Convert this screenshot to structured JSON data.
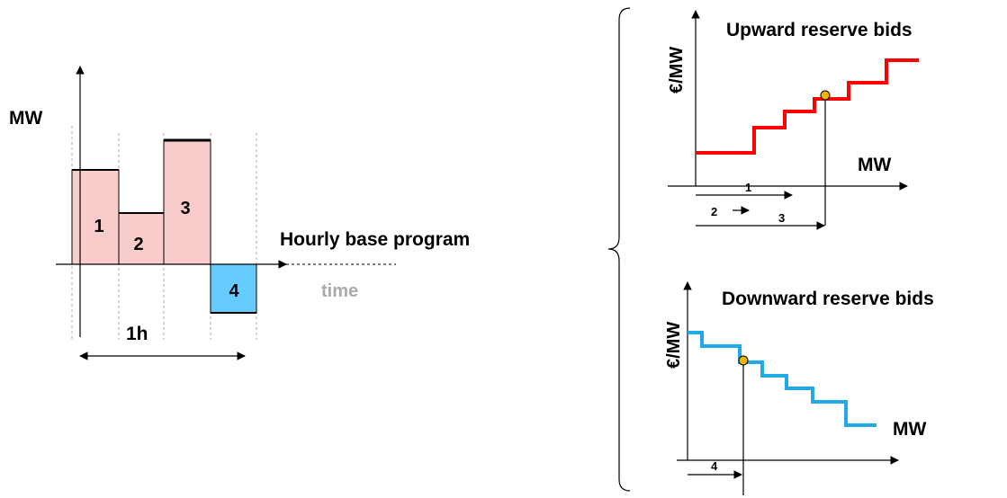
{
  "left_panel": {
    "y_axis_label": "MW",
    "x_axis_label": "time",
    "program_label": "Hourly base program",
    "duration_label": "1h",
    "blocks": [
      {
        "label": "1",
        "level": 1.0
      },
      {
        "label": "2",
        "level": 0.54
      },
      {
        "label": "3",
        "level": 1.34
      },
      {
        "label": "4",
        "level": -0.5
      }
    ]
  },
  "upward_panel": {
    "title": "Upward reserve bids",
    "y_axis_label": "€/MW",
    "x_axis_label": "MW",
    "arrow_labels": [
      "1",
      "2",
      "3"
    ]
  },
  "downward_panel": {
    "title": "Downward reserve bids",
    "y_axis_label": "€/MW",
    "x_axis_label": "MW",
    "arrow_labels": [
      "4"
    ]
  },
  "colors": {
    "positive_block": "#f9cccc",
    "negative_block": "#66ccff",
    "upward_curve": "#ff0000",
    "downward_curve": "#1fa9e8",
    "marker": "#f4b400"
  }
}
